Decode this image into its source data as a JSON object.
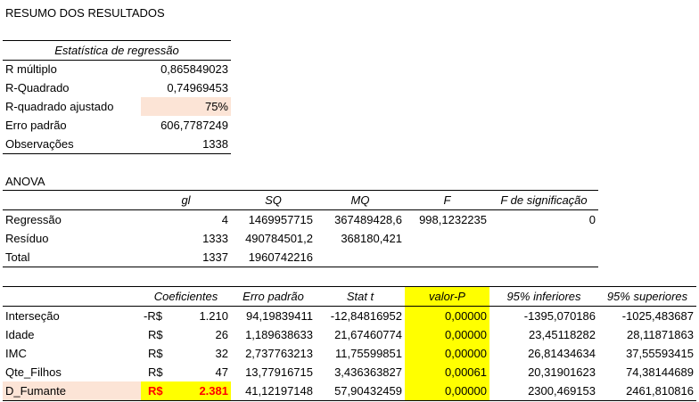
{
  "title": "RESUMO DOS RESULTADOS",
  "regression_stats": {
    "header": "Estatística de regressão",
    "rows": [
      {
        "label": "R múltiplo",
        "value": "0,865849023"
      },
      {
        "label": "R-Quadrado",
        "value": "0,74969453"
      },
      {
        "label": "R-quadrado ajustado",
        "value": "75%"
      },
      {
        "label": "Erro padrão",
        "value": "606,7787249"
      },
      {
        "label": "Observações",
        "value": "1338"
      }
    ]
  },
  "anova": {
    "title": "ANOVA",
    "headers": [
      "gl",
      "SQ",
      "MQ",
      "F",
      "F de significação"
    ],
    "rows": [
      {
        "label": "Regressão",
        "gl": "4",
        "sq": "1469957715",
        "mq": "367489428,6",
        "f": "998,1232235",
        "fsig": "0"
      },
      {
        "label": "Resíduo",
        "gl": "1333",
        "sq": "490784501,2",
        "mq": "368180,421",
        "f": "",
        "fsig": ""
      },
      {
        "label": "Total",
        "gl": "1337",
        "sq": "1960742216",
        "mq": "",
        "f": "",
        "fsig": ""
      }
    ]
  },
  "coefficients": {
    "headers": [
      "Coeficientes",
      "Erro padrão",
      "Stat t",
      "valor-P",
      "95% inferiores",
      "95% superiores"
    ],
    "rows": [
      {
        "label": "Interseção",
        "cur": "-R$",
        "coef": "1.210",
        "se": "94,19839411",
        "t": "-12,84816952",
        "p": "0,00000",
        "lo": "-1395,070186",
        "hi": "-1025,483687"
      },
      {
        "label": "Idade",
        "cur": "R$",
        "coef": "26",
        "se": "1,189638633",
        "t": "21,67460774",
        "p": "0,00000",
        "lo": "23,45118282",
        "hi": "28,11871863"
      },
      {
        "label": "IMC",
        "cur": "R$",
        "coef": "32",
        "se": "2,737763213",
        "t": "11,75599851",
        "p": "0,00000",
        "lo": "26,81434634",
        "hi": "37,55593415"
      },
      {
        "label": "Qte_Filhos",
        "cur": "R$",
        "coef": "47",
        "se": "13,77916715",
        "t": "3,436363827",
        "p": "0,00061",
        "lo": "20,31901623",
        "hi": "74,38144689"
      },
      {
        "label": "D_Fumante",
        "cur": "R$",
        "coef": "2.381",
        "se": "41,12197148",
        "t": "57,90432459",
        "p": "0,00000",
        "lo": "2300,469153",
        "hi": "2461,810816"
      }
    ]
  },
  "colors": {
    "peach": "#fce4d6",
    "yellow": "#ffff00",
    "red": "#ff0000"
  }
}
